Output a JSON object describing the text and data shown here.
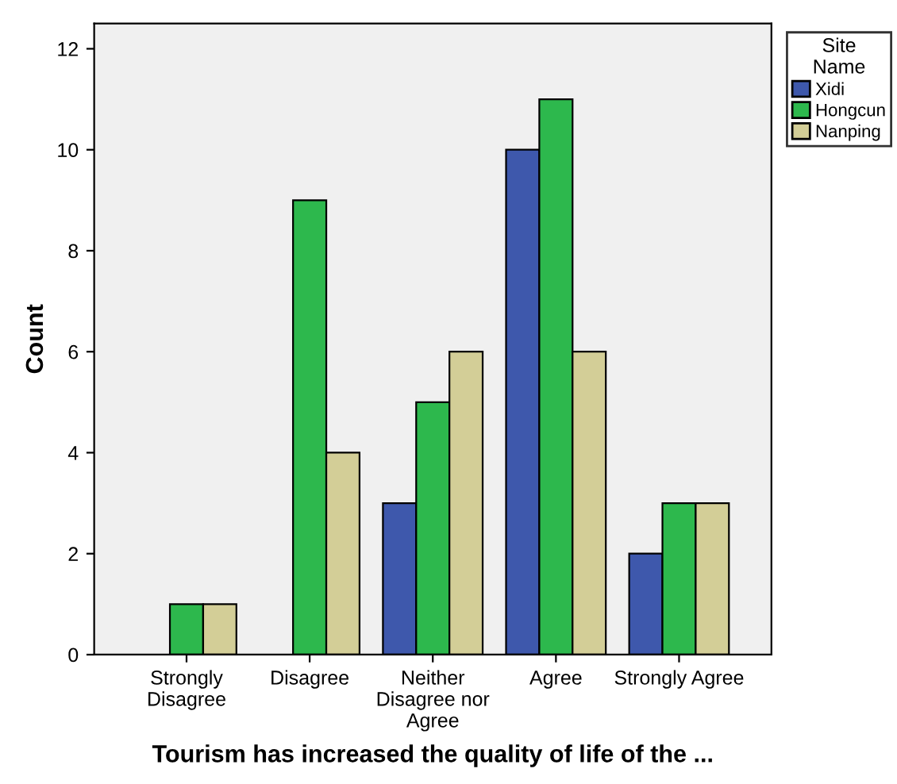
{
  "chart_data": {
    "type": "bar",
    "xlabel": "Tourism has increased the quality of life of the ...",
    "ylabel": "Count",
    "legend_title": "Site\nName",
    "categories": [
      "Strongly\nDisagree",
      "Disagree",
      "Neither\nDisagree nor\nAgree",
      "Agree",
      "Strongly Agree"
    ],
    "series": [
      {
        "name": "Xidi",
        "color": "#3e58ac",
        "values": [
          null,
          null,
          3,
          10,
          2
        ]
      },
      {
        "name": "Hongcun",
        "color": "#2db84d",
        "values": [
          1,
          9,
          5,
          11,
          3
        ]
      },
      {
        "name": "Nanping",
        "color": "#d3ce97",
        "values": [
          1,
          4,
          6,
          6,
          3
        ]
      }
    ],
    "ylim": [
      0,
      12.5
    ],
    "yticks": [
      0,
      2,
      4,
      6,
      8,
      10,
      12
    ],
    "grid": false,
    "legend": "top right"
  }
}
